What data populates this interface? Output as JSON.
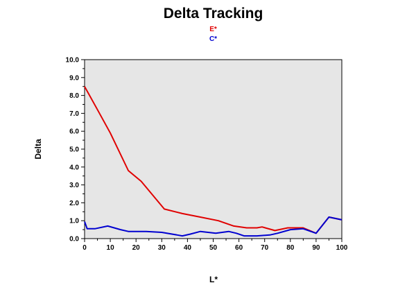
{
  "chart_data": {
    "type": "line",
    "title": "Delta Tracking",
    "xlabel": "L*",
    "ylabel": "Delta",
    "xlim": [
      0,
      100
    ],
    "ylim": [
      0,
      10
    ],
    "x_ticks": [
      "0",
      "10",
      "20",
      "30",
      "40",
      "50",
      "60",
      "70",
      "80",
      "90",
      "100"
    ],
    "y_ticks": [
      "0.0",
      "1.0",
      "2.0",
      "3.0",
      "4.0",
      "5.0",
      "6.0",
      "7.0",
      "8.0",
      "9.0",
      "10.0"
    ],
    "background": "#e6e6e6",
    "grid": false,
    "legend_position": "top-center",
    "series": [
      {
        "name": "E*",
        "color": "#e00000",
        "points": [
          [
            0,
            8.5
          ],
          [
            5,
            7.2
          ],
          [
            10,
            5.9
          ],
          [
            17,
            3.8
          ],
          [
            22,
            3.2
          ],
          [
            31,
            1.65
          ],
          [
            38,
            1.4
          ],
          [
            45,
            1.2
          ],
          [
            52,
            1.0
          ],
          [
            58,
            0.7
          ],
          [
            63,
            0.6
          ],
          [
            67,
            0.6
          ],
          [
            69,
            0.65
          ],
          [
            74,
            0.45
          ],
          [
            79,
            0.6
          ],
          [
            85,
            0.6
          ],
          [
            90,
            0.3
          ],
          [
            95,
            1.2
          ],
          [
            100,
            1.05
          ]
        ]
      },
      {
        "name": "C*",
        "color": "#0000d0",
        "points": [
          [
            0,
            0.95
          ],
          [
            1,
            0.55
          ],
          [
            4,
            0.55
          ],
          [
            9,
            0.7
          ],
          [
            14,
            0.5
          ],
          [
            17,
            0.4
          ],
          [
            24,
            0.4
          ],
          [
            30,
            0.35
          ],
          [
            36,
            0.2
          ],
          [
            38,
            0.15
          ],
          [
            41,
            0.25
          ],
          [
            45,
            0.4
          ],
          [
            51,
            0.3
          ],
          [
            56,
            0.4
          ],
          [
            59,
            0.3
          ],
          [
            62,
            0.15
          ],
          [
            67,
            0.15
          ],
          [
            72,
            0.2
          ],
          [
            75,
            0.3
          ],
          [
            80,
            0.5
          ],
          [
            85,
            0.55
          ],
          [
            90,
            0.3
          ],
          [
            95,
            1.2
          ],
          [
            100,
            1.05
          ]
        ]
      }
    ]
  }
}
